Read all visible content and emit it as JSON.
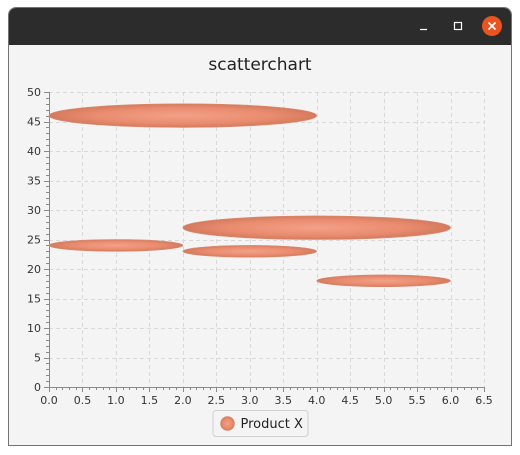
{
  "window": {
    "controls": [
      "minimize-icon",
      "maximize-icon",
      "close-icon"
    ],
    "close_color": "#e95420"
  },
  "chart_data": {
    "type": "bubble",
    "title": "scatterchart",
    "xlabel": "",
    "ylabel": "",
    "xlim": [
      0.0,
      6.5
    ],
    "ylim": [
      0,
      50
    ],
    "x_major_ticks": [
      "0.0",
      "0.5",
      "1.0",
      "1.5",
      "2.0",
      "2.5",
      "3.0",
      "3.5",
      "4.0",
      "4.5",
      "5.0",
      "5.5",
      "6.0",
      "6.5"
    ],
    "y_major_ticks": [
      "0",
      "5",
      "10",
      "15",
      "20",
      "25",
      "30",
      "35",
      "40",
      "45",
      "50"
    ],
    "grid": true,
    "legend_position": "bottom",
    "series": [
      {
        "name": "Product X",
        "color": "#e8876a",
        "points": [
          {
            "x": 2.0,
            "y": 46,
            "r": 2.0
          },
          {
            "x": 1.0,
            "y": 24,
            "r": 1.0
          },
          {
            "x": 3.0,
            "y": 23,
            "r": 1.0
          },
          {
            "x": 4.0,
            "y": 27,
            "r": 2.0
          },
          {
            "x": 5.0,
            "y": 18,
            "r": 1.0
          }
        ]
      }
    ]
  }
}
